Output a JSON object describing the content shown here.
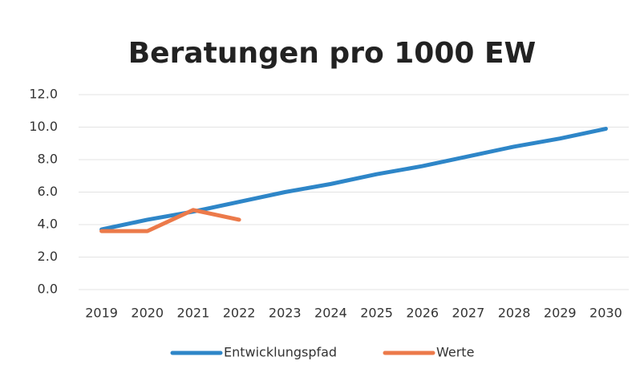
{
  "chart_data": {
    "type": "line",
    "title": "Beratungen pro 1000 EW",
    "categories": [
      "2019",
      "2020",
      "2021",
      "2022",
      "2023",
      "2024",
      "2025",
      "2026",
      "2027",
      "2028",
      "2029",
      "2030"
    ],
    "series": [
      {
        "name": "Entwicklungspfad",
        "color": "#2e86c8",
        "values": [
          3.7,
          4.3,
          4.8,
          5.4,
          6.0,
          6.5,
          7.1,
          7.6,
          8.2,
          8.8,
          9.3,
          9.9
        ]
      },
      {
        "name": "Werte",
        "color": "#ec7a4a",
        "values": [
          3.6,
          3.6,
          4.9,
          4.3,
          null,
          null,
          null,
          null,
          null,
          null,
          null,
          null
        ]
      }
    ],
    "ylim": [
      0,
      12
    ],
    "yticks": [
      {
        "value": 0,
        "label": "0.0"
      },
      {
        "value": 2,
        "label": "2.0"
      },
      {
        "value": 4,
        "label": "4.0"
      },
      {
        "value": 6,
        "label": "6.0"
      },
      {
        "value": 8,
        "label": "8.0"
      },
      {
        "value": 10,
        "label": "10.0"
      },
      {
        "value": 12,
        "label": "12.0"
      }
    ],
    "grid": true,
    "legend": "bottom"
  }
}
